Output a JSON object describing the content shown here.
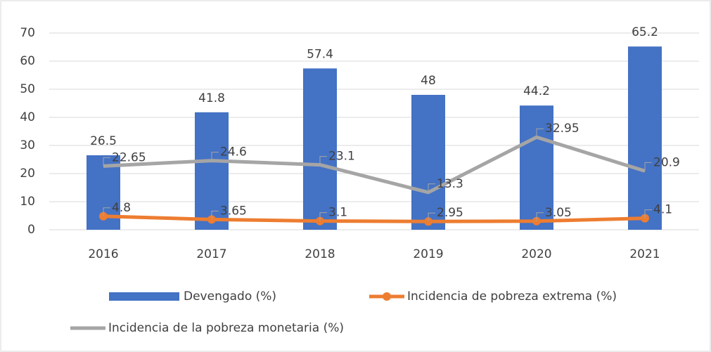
{
  "chart_data": {
    "type": "bar",
    "categories": [
      "2016",
      "2017",
      "2018",
      "2019",
      "2020",
      "2021"
    ],
    "series": [
      {
        "name": "Devengado (%)",
        "type": "bar",
        "color": "#4472c4",
        "values": [
          26.5,
          41.8,
          57.4,
          48,
          44.2,
          65.2
        ]
      },
      {
        "name": "Incidencia de pobreza extrema (%)",
        "type": "line",
        "color": "#ed7d31",
        "marker": true,
        "values": [
          4.8,
          3.65,
          3.1,
          2.95,
          3.05,
          4.1
        ]
      },
      {
        "name": "Incidencia de la pobreza monetaria  (%)",
        "type": "line",
        "color": "#a5a5a5",
        "marker": false,
        "values": [
          22.65,
          24.6,
          23.1,
          13.3,
          32.95,
          20.9
        ]
      }
    ],
    "ylim": [
      0,
      70
    ],
    "yticks": [
      0,
      10,
      20,
      30,
      40,
      50,
      60,
      70
    ],
    "grid": true,
    "legend": "bottom"
  }
}
